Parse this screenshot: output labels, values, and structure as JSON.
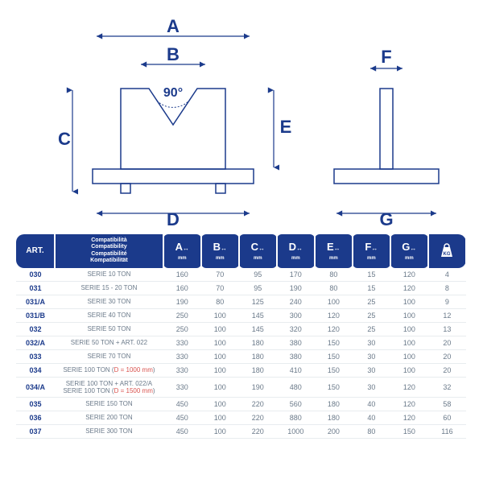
{
  "diagram": {
    "labels": {
      "A": "A",
      "B": "B",
      "C": "C",
      "D": "D",
      "E": "E",
      "F": "F",
      "G": "G",
      "angle": "90°"
    },
    "color": "#1b3a8b"
  },
  "table": {
    "headers": {
      "art": "ART.",
      "compat": "Compatibilità\nCompatibility\nCompatibilité\nKompatibilität",
      "dims": [
        "A",
        "B",
        "C",
        "D",
        "E",
        "F",
        "G"
      ],
      "mm": "mm",
      "weight_icon": "KG"
    },
    "rows": [
      {
        "art": "030",
        "compat": "SERIE 10 TON",
        "A": "160",
        "B": "70",
        "C": "95",
        "D": "170",
        "E": "80",
        "F": "15",
        "G": "120",
        "KG": "4"
      },
      {
        "art": "031",
        "compat": "SERIE 15 - 20 TON",
        "A": "160",
        "B": "70",
        "C": "95",
        "D": "190",
        "E": "80",
        "F": "15",
        "G": "120",
        "KG": "8"
      },
      {
        "art": "031/A",
        "compat": "SERIE 30 TON",
        "A": "190",
        "B": "80",
        "C": "125",
        "D": "240",
        "E": "100",
        "F": "25",
        "G": "100",
        "KG": "9"
      },
      {
        "art": "031/B",
        "compat": "SERIE 40 TON",
        "A": "250",
        "B": "100",
        "C": "145",
        "D": "300",
        "E": "120",
        "F": "25",
        "G": "100",
        "KG": "12"
      },
      {
        "art": "032",
        "compat": "SERIE 50 TON",
        "A": "250",
        "B": "100",
        "C": "145",
        "D": "320",
        "E": "120",
        "F": "25",
        "G": "100",
        "KG": "13"
      },
      {
        "art": "032/A",
        "compat": "SERIE 50 TON + ART. 022",
        "A": "330",
        "B": "100",
        "C": "180",
        "D": "380",
        "E": "150",
        "F": "30",
        "G": "100",
        "KG": "20"
      },
      {
        "art": "033",
        "compat": "SERIE 70 TON",
        "A": "330",
        "B": "100",
        "C": "180",
        "D": "380",
        "E": "150",
        "F": "30",
        "G": "100",
        "KG": "20"
      },
      {
        "art": "034",
        "compat": "SERIE 100 TON (D = 1000 mm)",
        "compat_red": "D = 1000 mm",
        "A": "330",
        "B": "100",
        "C": "180",
        "D": "410",
        "E": "150",
        "F": "30",
        "G": "100",
        "KG": "20"
      },
      {
        "art": "034/A",
        "compat": "SERIE 100 TON + ART. 022/A\nSERIE 100 TON (D = 1500 mm)",
        "compat_red": "D = 1500 mm",
        "A": "330",
        "B": "100",
        "C": "190",
        "D": "480",
        "E": "150",
        "F": "30",
        "G": "120",
        "KG": "32"
      },
      {
        "art": "035",
        "compat": "SERIE 150 TON",
        "A": "450",
        "B": "100",
        "C": "220",
        "D": "560",
        "E": "180",
        "F": "40",
        "G": "120",
        "KG": "58"
      },
      {
        "art": "036",
        "compat": "SERIE 200 TON",
        "A": "450",
        "B": "100",
        "C": "220",
        "D": "880",
        "E": "180",
        "F": "40",
        "G": "120",
        "KG": "60"
      },
      {
        "art": "037",
        "compat": "SERIE 300 TON",
        "A": "450",
        "B": "100",
        "C": "220",
        "D": "1000",
        "E": "200",
        "F": "80",
        "G": "150",
        "KG": "116"
      }
    ]
  }
}
